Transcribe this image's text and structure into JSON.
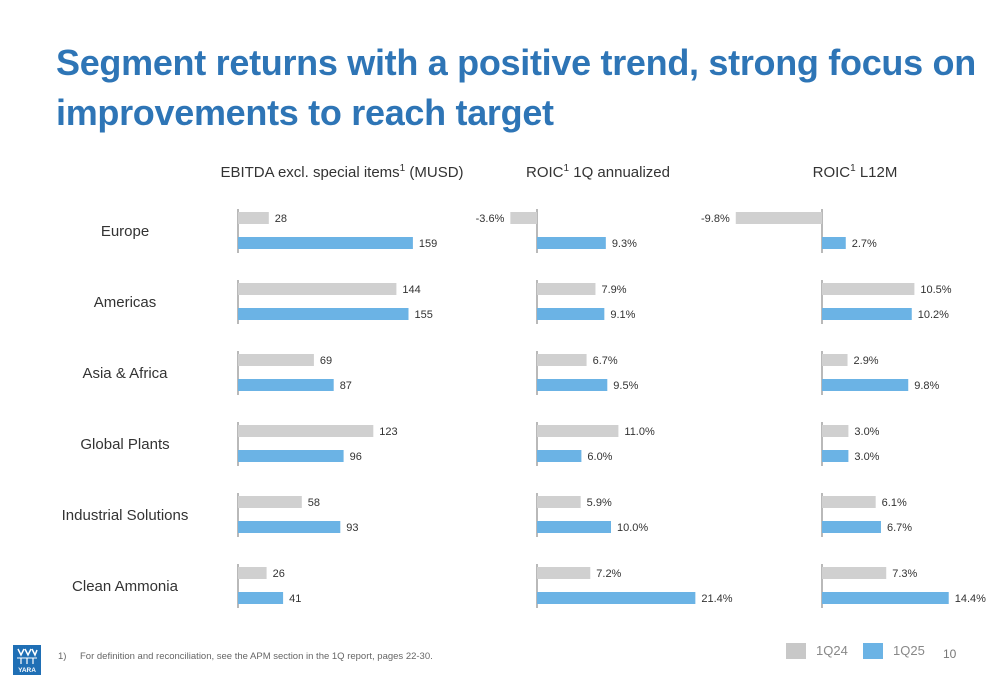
{
  "title": "Segment returns with a positive trend, strong focus on improvements to reach target",
  "footnote": {
    "num": "1)",
    "text": "For definition and reconciliation, see the APM section in the 1Q report, pages 22-30."
  },
  "legend": [
    {
      "label": "1Q24",
      "color": "#c8c8c8"
    },
    {
      "label": "1Q25",
      "color": "#6bb3e5"
    }
  ],
  "page_number": "10",
  "logo_text": "YARA",
  "colors": {
    "title": "#2e75b6",
    "q24": "#d0d0d0",
    "q25": "#6bb3e5",
    "axis": "#8a8a8a"
  },
  "chart_data": [
    {
      "type": "bar",
      "orientation": "horizontal",
      "title": "EBITDA excl. special items",
      "title_sup": "1",
      "title_suffix": " (MUSD)",
      "categories": [
        "Europe",
        "Americas",
        "Asia & Africa",
        "Global Plants",
        "Industrial Solutions",
        "Clean Ammonia"
      ],
      "series": [
        {
          "name": "1Q24",
          "values": [
            28,
            144,
            69,
            123,
            58,
            26
          ],
          "labels": [
            "28",
            "144",
            "69",
            "123",
            "58",
            "26"
          ]
        },
        {
          "name": "1Q25",
          "values": [
            159,
            155,
            87,
            96,
            93,
            41
          ],
          "labels": [
            "159",
            "155",
            "87",
            "96",
            "93",
            "41"
          ]
        }
      ]
    },
    {
      "type": "bar",
      "orientation": "horizontal",
      "title": "ROIC",
      "title_sup": "1",
      "title_suffix": " 1Q annualized",
      "categories": [
        "Europe",
        "Americas",
        "Asia & Africa",
        "Global Plants",
        "Industrial Solutions",
        "Clean Ammonia"
      ],
      "series": [
        {
          "name": "1Q24",
          "values": [
            -3.6,
            7.9,
            6.7,
            11.0,
            5.9,
            7.2
          ],
          "labels": [
            "-3.6%",
            "7.9%",
            "6.7%",
            "11.0%",
            "5.9%",
            "7.2%"
          ]
        },
        {
          "name": "1Q25",
          "values": [
            9.3,
            9.1,
            9.5,
            6.0,
            10.0,
            21.4
          ],
          "labels": [
            "9.3%",
            "9.1%",
            "9.5%",
            "6.0%",
            "10.0%",
            "21.4%"
          ]
        }
      ]
    },
    {
      "type": "bar",
      "orientation": "horizontal",
      "title": "ROIC",
      "title_sup": "1",
      "title_suffix": " L12M",
      "categories": [
        "Europe",
        "Americas",
        "Asia & Africa",
        "Global Plants",
        "Industrial Solutions",
        "Clean Ammonia"
      ],
      "series": [
        {
          "name": "1Q24",
          "values": [
            -9.8,
            10.5,
            2.9,
            3.0,
            6.1,
            7.3
          ],
          "labels": [
            "-9.8%",
            "10.5%",
            "2.9%",
            "3.0%",
            "6.1%",
            "7.3%"
          ]
        },
        {
          "name": "1Q25",
          "values": [
            2.7,
            10.2,
            9.8,
            3.0,
            6.7,
            14.4
          ],
          "labels": [
            "2.7%",
            "10.2%",
            "9.8%",
            "3.0%",
            "6.7%",
            "14.4%"
          ]
        }
      ]
    }
  ]
}
